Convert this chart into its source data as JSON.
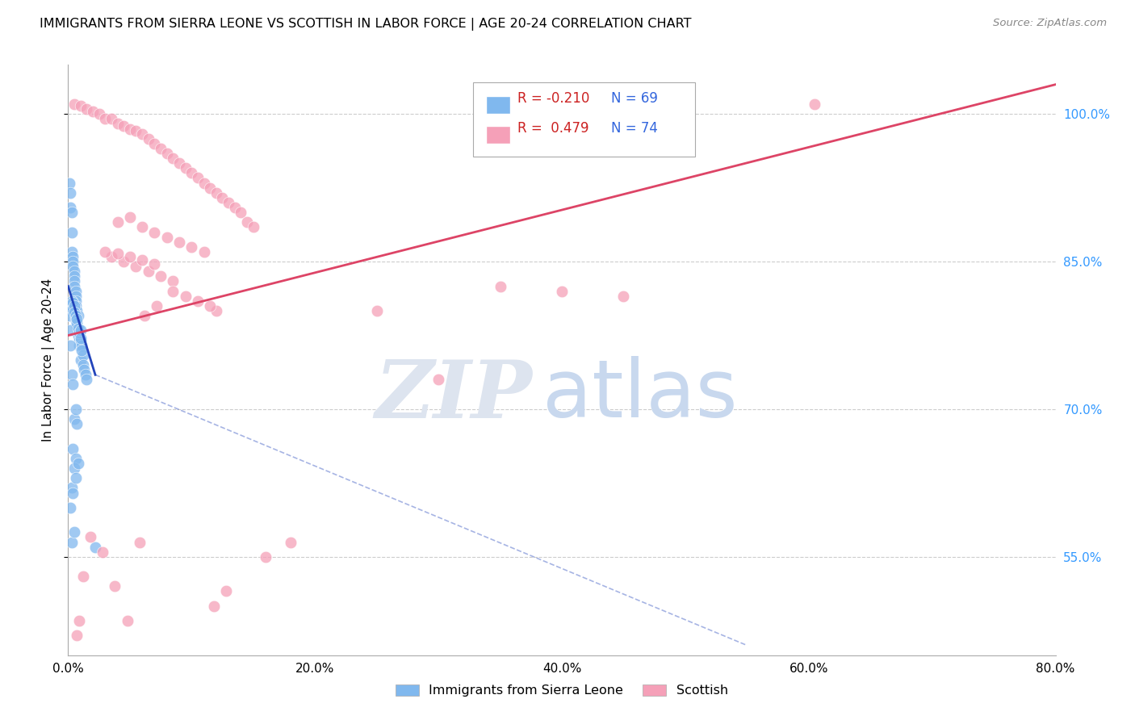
{
  "title": "IMMIGRANTS FROM SIERRA LEONE VS SCOTTISH IN LABOR FORCE | AGE 20-24 CORRELATION CHART",
  "source": "Source: ZipAtlas.com",
  "ylabel": "In Labor Force | Age 20-24",
  "xlim": [
    0.0,
    80.0
  ],
  "ylim": [
    45.0,
    105.0
  ],
  "yticks": [
    55.0,
    70.0,
    85.0,
    100.0
  ],
  "xticks": [
    0.0,
    20.0,
    40.0,
    60.0,
    80.0
  ],
  "legend_blue_r": "-0.210",
  "legend_blue_n": "69",
  "legend_pink_r": "0.479",
  "legend_pink_n": "74",
  "legend_label_blue": "Immigrants from Sierra Leone",
  "legend_label_pink": "Scottish",
  "blue_color": "#80b8ee",
  "pink_color": "#f5a0b8",
  "blue_line_color": "#2244bb",
  "pink_line_color": "#dd4466",
  "blue_scatter_x": [
    0.1,
    0.2,
    0.2,
    0.3,
    0.3,
    0.3,
    0.4,
    0.4,
    0.4,
    0.5,
    0.5,
    0.5,
    0.5,
    0.6,
    0.6,
    0.6,
    0.6,
    0.7,
    0.7,
    0.7,
    0.7,
    0.8,
    0.8,
    0.8,
    0.9,
    0.9,
    1.0,
    1.0,
    1.1,
    1.2,
    1.2,
    1.3,
    1.4,
    1.5,
    0.1,
    0.1,
    0.2,
    0.2,
    0.3,
    0.3,
    0.4,
    0.4,
    0.5,
    0.5,
    0.6,
    0.6,
    0.7,
    0.7,
    0.8,
    0.9,
    1.0,
    1.0,
    1.1,
    0.3,
    0.4,
    0.5,
    0.6,
    0.7,
    0.3,
    0.5,
    0.4,
    0.6,
    2.2,
    0.5,
    0.3,
    0.2,
    0.4,
    0.6,
    0.8
  ],
  "blue_scatter_y": [
    93.0,
    92.0,
    90.5,
    90.0,
    88.0,
    86.0,
    85.5,
    85.0,
    84.5,
    84.0,
    83.5,
    83.0,
    82.5,
    82.0,
    81.5,
    81.0,
    80.5,
    80.0,
    79.5,
    79.0,
    78.5,
    78.0,
    79.5,
    77.5,
    77.0,
    76.5,
    77.0,
    75.0,
    76.5,
    75.5,
    74.5,
    74.0,
    73.5,
    73.0,
    80.0,
    79.5,
    78.0,
    76.5,
    80.5,
    81.0,
    80.8,
    80.2,
    80.5,
    79.8,
    79.5,
    79.0,
    78.8,
    79.2,
    78.2,
    77.8,
    78.0,
    77.2,
    76.0,
    73.5,
    72.5,
    69.0,
    70.0,
    68.5,
    56.5,
    57.5,
    66.0,
    65.0,
    56.0,
    64.0,
    62.0,
    60.0,
    61.5,
    63.0,
    64.5
  ],
  "pink_scatter_x": [
    0.5,
    1.0,
    1.5,
    2.0,
    2.5,
    3.0,
    3.5,
    4.0,
    4.5,
    5.0,
    5.5,
    6.0,
    6.5,
    7.0,
    7.5,
    8.0,
    8.5,
    9.0,
    9.5,
    10.0,
    10.5,
    11.0,
    11.5,
    12.0,
    12.5,
    13.0,
    13.5,
    14.0,
    4.0,
    5.0,
    6.0,
    7.0,
    8.0,
    9.0,
    10.0,
    11.0,
    3.5,
    4.5,
    5.5,
    6.5,
    7.5,
    8.5,
    3.0,
    4.0,
    5.0,
    6.0,
    7.0,
    14.5,
    15.0,
    12.0,
    11.5,
    10.5,
    9.5,
    8.5,
    30.0,
    35.0,
    40.0,
    45.0,
    60.5,
    25.0,
    18.0,
    16.0,
    12.8,
    11.8,
    7.2,
    6.2,
    5.8,
    4.8,
    3.8,
    2.8,
    1.8,
    0.9,
    0.7,
    1.2
  ],
  "pink_scatter_y": [
    101.0,
    100.8,
    100.5,
    100.3,
    100.0,
    99.5,
    99.5,
    99.0,
    98.8,
    98.5,
    98.3,
    98.0,
    97.5,
    97.0,
    96.5,
    96.0,
    95.5,
    95.0,
    94.5,
    94.0,
    93.5,
    93.0,
    92.5,
    92.0,
    91.5,
    91.0,
    90.5,
    90.0,
    89.0,
    89.5,
    88.5,
    88.0,
    87.5,
    87.0,
    86.5,
    86.0,
    85.5,
    85.0,
    84.5,
    84.0,
    83.5,
    83.0,
    86.0,
    85.8,
    85.5,
    85.2,
    84.8,
    89.0,
    88.5,
    80.0,
    80.5,
    81.0,
    81.5,
    82.0,
    73.0,
    82.5,
    82.0,
    81.5,
    101.0,
    80.0,
    56.5,
    55.0,
    51.5,
    50.0,
    80.5,
    79.5,
    56.5,
    48.5,
    52.0,
    55.5,
    57.0,
    48.5,
    47.0,
    53.0
  ],
  "blue_line_x0": 0.0,
  "blue_line_y0": 82.5,
  "blue_line_x1": 2.2,
  "blue_line_y1": 73.5,
  "blue_dash_x0": 2.2,
  "blue_dash_y0": 73.5,
  "blue_dash_x1": 55.0,
  "blue_dash_y1": 46.0,
  "pink_line_x0": 0.0,
  "pink_line_y0": 77.5,
  "pink_line_x1": 80.0,
  "pink_line_y1": 103.0
}
